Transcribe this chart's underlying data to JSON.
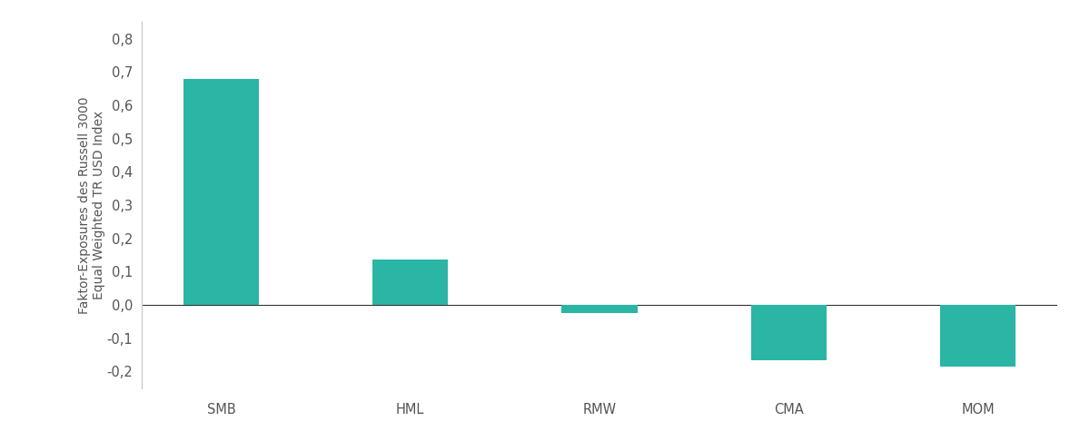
{
  "categories": [
    "SMB",
    "HML",
    "RMW",
    "CMA",
    "MOM"
  ],
  "values": [
    0.68,
    0.135,
    -0.025,
    -0.165,
    -0.185
  ],
  "bar_color": "#2ab5a5",
  "ylabel_line1": "Faktor-Exposures des Russell 3000",
  "ylabel_line2": "Equal Weighted TR USD Index",
  "ylim": [
    -0.25,
    0.85
  ],
  "yticks": [
    -0.2,
    -0.1,
    0.0,
    0.1,
    0.2,
    0.3,
    0.4,
    0.5,
    0.6,
    0.7,
    0.8
  ],
  "background_color": "#ffffff",
  "bar_width": 0.4,
  "ylabel_fontsize": 10,
  "tick_fontsize": 10.5,
  "xtick_fontsize": 10.5,
  "spine_color": "#cccccc",
  "zero_line_color": "#333333",
  "label_color": "#555555"
}
